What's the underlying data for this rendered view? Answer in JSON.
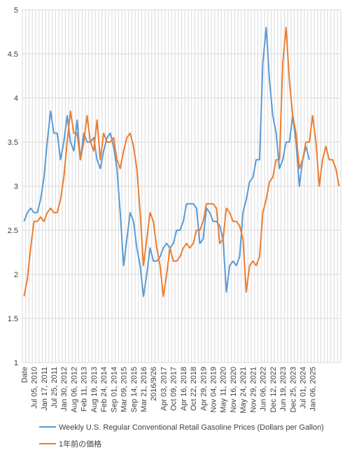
{
  "chart_data": {
    "type": "line",
    "categories": [
      "Date",
      null,
      null,
      "Jul 05, 2010",
      null,
      null,
      "Jan 17, 2011",
      null,
      null,
      "Jul 25, 2011",
      null,
      null,
      "Jan 30, 2012",
      null,
      null,
      "Aug 06, 2012",
      null,
      null,
      "Feb 11, 2013",
      null,
      null,
      "Aug 19, 2013",
      null,
      null,
      "Feb 24, 2014",
      null,
      null,
      "Sep 01, 2014",
      null,
      null,
      "Mar 09, 2015",
      null,
      null,
      "Sep 14, 2015",
      null,
      null,
      "Mar 21, 2016",
      null,
      null,
      "2016/9/26",
      null,
      null,
      "Apr 03, 2017",
      null,
      null,
      "Oct 09, 2017",
      null,
      null,
      "Apr 16, 2018",
      null,
      null,
      "Oct 22, 2018",
      null,
      null,
      "Apr 29, 2019",
      null,
      null,
      "Nov 04, 2019",
      null,
      null,
      "May 11, 2020",
      null,
      null,
      "Nov 16, 2020",
      null,
      null,
      "May 24, 2021",
      null,
      null,
      "Nov 29, 2021",
      null,
      null,
      "Jun 06, 2022",
      null,
      null,
      "Dec 12, 2022",
      null,
      null,
      "Jun 19, 2023",
      null,
      null,
      "Dec 25, 2023",
      null,
      null,
      "Jul 01, 2024",
      null,
      null,
      "Jan 06, 2025",
      null,
      null,
      null,
      null,
      null,
      null,
      null,
      null
    ],
    "series": [
      {
        "name": "Weekly U.S. Regular Conventional Retail Gasoline Prices (Dollars per Gallon)",
        "color": "#5b9bd5",
        "values": [
          2.6,
          2.7,
          2.75,
          2.7,
          2.7,
          2.85,
          3.1,
          3.5,
          3.85,
          3.6,
          3.6,
          3.3,
          3.5,
          3.8,
          3.5,
          3.4,
          3.75,
          3.3,
          3.6,
          3.5,
          3.5,
          3.55,
          3.3,
          3.2,
          3.4,
          3.55,
          3.6,
          3.45,
          3.2,
          2.7,
          2.1,
          2.4,
          2.7,
          2.6,
          2.3,
          2.1,
          1.75,
          2.0,
          2.3,
          2.15,
          2.15,
          2.2,
          2.3,
          2.35,
          2.3,
          2.35,
          2.5,
          2.5,
          2.6,
          2.8,
          2.8,
          2.8,
          2.75,
          2.35,
          2.4,
          2.75,
          2.7,
          2.6,
          2.6,
          2.55,
          2.4,
          1.8,
          2.1,
          2.15,
          2.1,
          2.2,
          2.7,
          2.85,
          3.05,
          3.1,
          3.3,
          3.3,
          4.4,
          4.8,
          4.2,
          3.8,
          3.6,
          3.2,
          3.3,
          3.5,
          3.5,
          3.8,
          3.5,
          3.0,
          3.3,
          3.45,
          3.3,
          null,
          null,
          null,
          null,
          null,
          null,
          null,
          null,
          null
        ]
      },
      {
        "name": "1年前の価格",
        "color": "#ed7d31",
        "values": [
          1.75,
          1.95,
          2.3,
          2.6,
          2.6,
          2.65,
          2.6,
          2.7,
          2.75,
          2.7,
          2.7,
          2.85,
          3.1,
          3.5,
          3.85,
          3.6,
          3.6,
          3.3,
          3.5,
          3.8,
          3.5,
          3.4,
          3.75,
          3.3,
          3.6,
          3.5,
          3.5,
          3.55,
          3.3,
          3.2,
          3.4,
          3.55,
          3.6,
          3.45,
          3.2,
          2.7,
          2.1,
          2.4,
          2.7,
          2.6,
          2.3,
          2.1,
          1.75,
          2.0,
          2.3,
          2.15,
          2.15,
          2.2,
          2.3,
          2.35,
          2.3,
          2.35,
          2.5,
          2.5,
          2.6,
          2.8,
          2.8,
          2.8,
          2.75,
          2.35,
          2.4,
          2.75,
          2.7,
          2.6,
          2.6,
          2.55,
          2.4,
          1.8,
          2.1,
          2.15,
          2.1,
          2.2,
          2.7,
          2.85,
          3.05,
          3.1,
          3.3,
          3.3,
          4.4,
          4.8,
          4.2,
          3.8,
          3.6,
          3.2,
          3.3,
          3.5,
          3.5,
          3.8,
          3.5,
          3.0,
          3.3,
          3.45,
          3.3,
          3.3,
          3.2,
          3.0
        ]
      }
    ],
    "ylim": [
      1,
      5
    ],
    "yticks": [
      1,
      1.5,
      2,
      2.5,
      3,
      3.5,
      4,
      4.5,
      5
    ],
    "grid": true,
    "legend": "bottom"
  }
}
